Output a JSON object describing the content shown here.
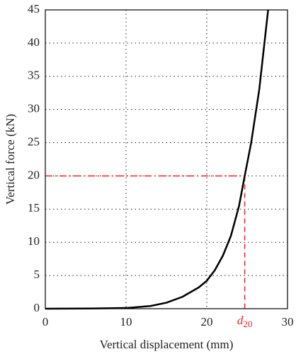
{
  "chart_data": {
    "type": "line",
    "x_label": "Vertical displacement (mm)",
    "y_label": "Vertical force (kN)",
    "x": [
      0,
      5,
      10,
      13,
      15,
      17,
      19,
      20,
      21,
      22,
      23,
      24,
      24.7,
      25.5,
      26.5,
      27.6
    ],
    "values": [
      0,
      0.02,
      0.1,
      0.4,
      0.9,
      1.8,
      3.2,
      4.2,
      5.8,
      8,
      11,
      15.5,
      20,
      25,
      33,
      45
    ],
    "color": "#000000",
    "xlim": [
      0,
      30
    ],
    "ylim": [
      0,
      45
    ],
    "xticks": [
      0,
      10,
      20,
      30
    ],
    "yticks": [
      0,
      5,
      10,
      15,
      20,
      25,
      30,
      35,
      40,
      45
    ],
    "grid": true,
    "reference": {
      "x": 24.7,
      "y": 20,
      "color": "#e8232a",
      "label": "d",
      "label_subscript": "20"
    }
  }
}
